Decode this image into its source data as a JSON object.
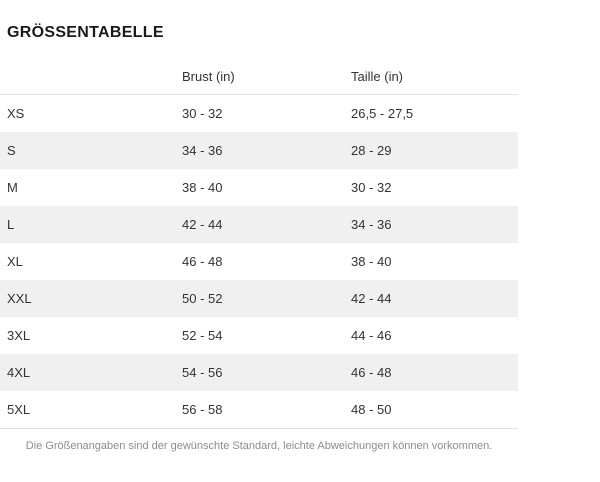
{
  "page": {
    "title": "GRÖSSENTABELLE",
    "footnote": "Die Größenangaben sind der gewünschte Standard, leichte Abweichungen können vorkommen."
  },
  "size_table": {
    "columns": [
      {
        "key": "size",
        "label": ""
      },
      {
        "key": "brust",
        "label": "Brust (in)"
      },
      {
        "key": "taille",
        "label": "Taille (in)"
      }
    ],
    "rows": [
      {
        "size": "XS",
        "brust": "30 - 32",
        "taille": "26,5 - 27,5"
      },
      {
        "size": "S",
        "brust": "34 - 36",
        "taille": "28 - 29"
      },
      {
        "size": "M",
        "brust": "38 - 40",
        "taille": "30 - 32"
      },
      {
        "size": "L",
        "brust": "42 - 44",
        "taille": "34 - 36"
      },
      {
        "size": "XL",
        "brust": "46 - 48",
        "taille": "38 - 40"
      },
      {
        "size": "XXL",
        "brust": "50 - 52",
        "taille": "42 - 44"
      },
      {
        "size": "3XL",
        "brust": "52 - 54",
        "taille": "44 - 46"
      },
      {
        "size": "4XL",
        "brust": "54 - 56",
        "taille": "46 - 48"
      },
      {
        "size": "5XL",
        "brust": "56 - 58",
        "taille": "48 - 50"
      }
    ]
  },
  "colors": {
    "row_alternate_bg": "#f0f0f0",
    "border": "#e3e3e3",
    "cell_text": "#333333",
    "title_text": "#1a1a1a",
    "footnote_text": "#8c8c8c"
  }
}
